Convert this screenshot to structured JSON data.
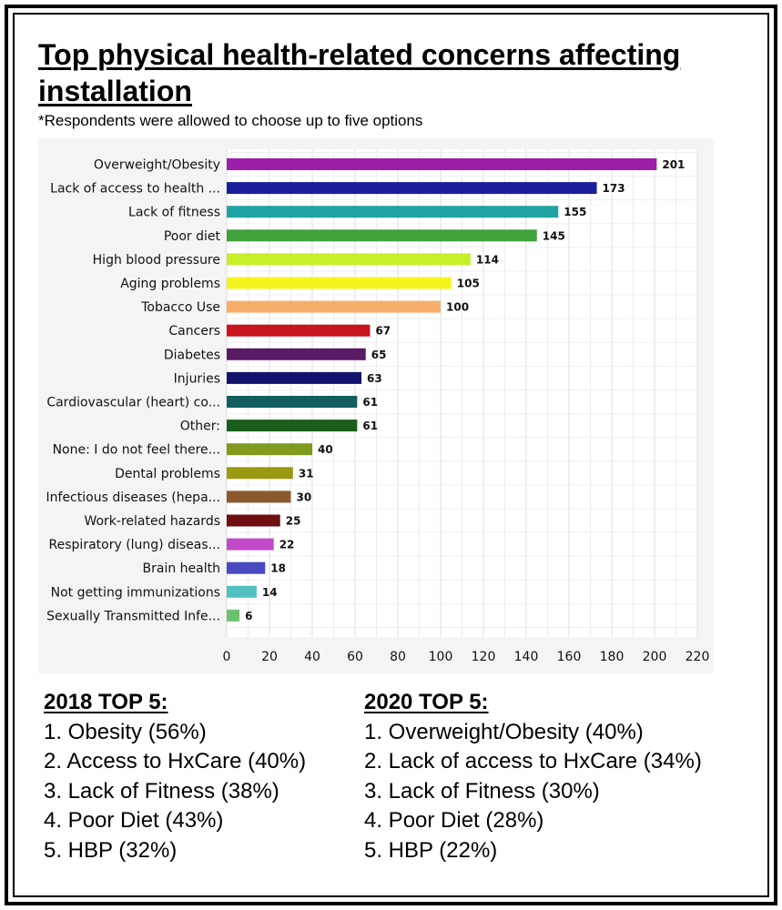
{
  "title": "Top physical health-related concerns affecting installation",
  "subtitle": "*Respondents were allowed to choose up to five options",
  "chart_data": {
    "type": "bar",
    "orientation": "horizontal",
    "categories": [
      "Overweight/Obesity",
      "Lack of access to health ...",
      "Lack of fitness",
      "Poor diet",
      "High blood pressure",
      "Aging problems",
      "Tobacco Use",
      "Cancers",
      "Diabetes",
      "Injuries",
      "Cardiovascular (heart) co...",
      "Other:",
      "None: I do not feel there...",
      "Dental problems",
      "Infectious diseases (hepa...",
      "Work-related hazards",
      "Respiratory (lung) diseas...",
      "Brain health",
      "Not getting immunizations",
      "Sexually Transmitted Infe..."
    ],
    "values": [
      201,
      173,
      155,
      145,
      114,
      105,
      100,
      67,
      65,
      63,
      61,
      61,
      40,
      31,
      30,
      25,
      22,
      18,
      14,
      6
    ],
    "colors": [
      "#9b1fa8",
      "#1b1f9a",
      "#22a3a3",
      "#3fa23a",
      "#c6ef2a",
      "#f5f51e",
      "#f7ad6a",
      "#c8141e",
      "#5a1a66",
      "#13136e",
      "#125e5e",
      "#1b5e1b",
      "#7f9a1c",
      "#9a9a12",
      "#8a5a2e",
      "#6e0e10",
      "#c04ac8",
      "#4a4ac0",
      "#52c0c0",
      "#6ec070"
    ],
    "xticks": [
      "0",
      "20",
      "40",
      "60",
      "80",
      "100",
      "120",
      "140",
      "160",
      "180",
      "200",
      "220"
    ],
    "xlim": [
      0,
      220
    ],
    "grid": true
  },
  "top5_2018": {
    "heading": "2018 TOP 5:",
    "items": [
      "1. Obesity (56%)",
      "2. Access to HxCare (40%)",
      "3. Lack of Fitness (38%)",
      "4. Poor Diet (43%)",
      "5. HBP (32%)"
    ]
  },
  "top5_2020": {
    "heading": "2020 TOP 5:",
    "items": [
      "1. Overweight/Obesity  (40%)",
      "2. Lack of access to HxCare (34%)",
      "3. Lack of Fitness (30%)",
      "4. Poor Diet (28%)",
      "5. HBP (22%)"
    ]
  }
}
